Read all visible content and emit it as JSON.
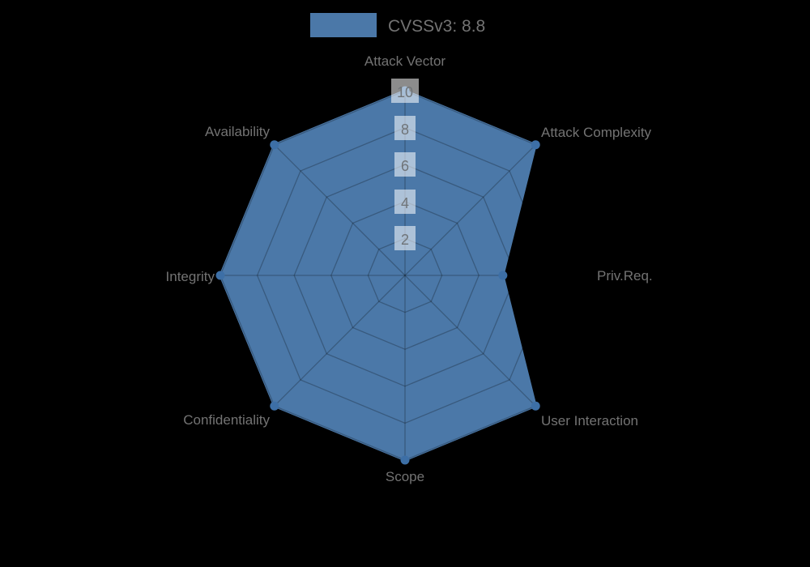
{
  "legend": {
    "label": "CVSSv3: 8.8",
    "swatch_color": "#4b78a8"
  },
  "chart_data": {
    "type": "radar",
    "title": "CVSSv3: 8.8",
    "categories": [
      "Attack Vector",
      "Attack Complexity",
      "Priv.Req.",
      "User Interaction",
      "Scope",
      "Confidentiality",
      "Integrity",
      "Availability"
    ],
    "series": [
      {
        "name": "CVSSv3: 8.8",
        "values": [
          10,
          10,
          5.3,
          10,
          10,
          10,
          10,
          10
        ]
      }
    ],
    "ticks": [
      "2",
      "4",
      "6",
      "8",
      "10"
    ],
    "rlim": [
      0,
      10
    ],
    "start_axis": "top",
    "direction": "clockwise",
    "grid_shape": "octagonal-web",
    "legend_position": "top-center",
    "colors": {
      "fill": "#4b78a8",
      "stroke": "#4b78a8",
      "marker": "#3d6fa6",
      "grid_line": "rgba(0,0,0,0.25)",
      "tick_box": "rgba(255,255,255,0.55)",
      "tick_text": "#6f7478",
      "label_text": "#737373",
      "background": "#000000"
    }
  }
}
